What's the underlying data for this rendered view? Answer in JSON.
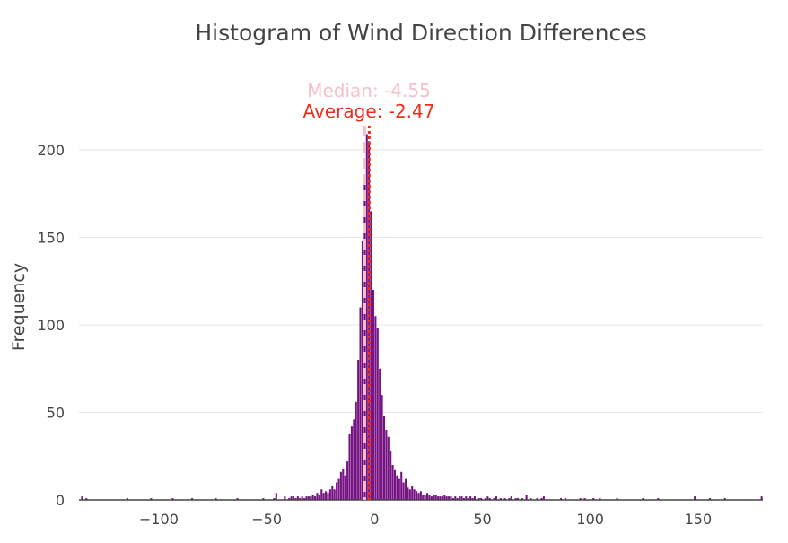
{
  "chart_data": {
    "type": "bar",
    "title": "Histogram of Wind Direction Differences",
    "xlabel": "",
    "ylabel": "Frequency",
    "xlim": [
      -137,
      180
    ],
    "ylim": [
      0,
      220
    ],
    "x_ticks": [
      -100,
      -50,
      0,
      50,
      100,
      150
    ],
    "y_ticks": [
      0,
      50,
      100,
      150,
      200
    ],
    "grid": true,
    "bar_color": "#771483",
    "bin_width": 1,
    "bins": [
      [
        -136,
        2
      ],
      [
        -134,
        1
      ],
      [
        -115,
        1
      ],
      [
        -104,
        1
      ],
      [
        -94,
        1
      ],
      [
        -85,
        1
      ],
      [
        -74,
        1
      ],
      [
        -64,
        1
      ],
      [
        -52,
        1
      ],
      [
        -47,
        1
      ],
      [
        -46,
        4
      ],
      [
        -42,
        2
      ],
      [
        -40,
        1
      ],
      [
        -39,
        2
      ],
      [
        -38,
        2
      ],
      [
        -37,
        1
      ],
      [
        -36,
        2
      ],
      [
        -35,
        1
      ],
      [
        -34,
        2
      ],
      [
        -33,
        1
      ],
      [
        -32,
        2
      ],
      [
        -31,
        2
      ],
      [
        -30,
        2
      ],
      [
        -29,
        3
      ],
      [
        -28,
        2
      ],
      [
        -27,
        4
      ],
      [
        -26,
        3
      ],
      [
        -25,
        6
      ],
      [
        -24,
        4
      ],
      [
        -23,
        5
      ],
      [
        -22,
        4
      ],
      [
        -21,
        6
      ],
      [
        -20,
        8
      ],
      [
        -19,
        6
      ],
      [
        -18,
        10
      ],
      [
        -17,
        12
      ],
      [
        -16,
        16
      ],
      [
        -15,
        18
      ],
      [
        -14,
        14
      ],
      [
        -13,
        22
      ],
      [
        -12,
        38
      ],
      [
        -11,
        42
      ],
      [
        -10,
        46
      ],
      [
        -9,
        56
      ],
      [
        -8,
        80
      ],
      [
        -7,
        110
      ],
      [
        -6,
        148
      ],
      [
        -5,
        185
      ],
      [
        -4,
        209
      ],
      [
        -3,
        205
      ],
      [
        -2,
        165
      ],
      [
        -1,
        120
      ],
      [
        0,
        105
      ],
      [
        1,
        98
      ],
      [
        2,
        75
      ],
      [
        3,
        60
      ],
      [
        4,
        48
      ],
      [
        5,
        40
      ],
      [
        6,
        36
      ],
      [
        7,
        28
      ],
      [
        8,
        20
      ],
      [
        9,
        17
      ],
      [
        10,
        14
      ],
      [
        11,
        12
      ],
      [
        12,
        16
      ],
      [
        13,
        10
      ],
      [
        14,
        12
      ],
      [
        15,
        7
      ],
      [
        16,
        6
      ],
      [
        17,
        8
      ],
      [
        18,
        6
      ],
      [
        19,
        5
      ],
      [
        20,
        4
      ],
      [
        21,
        5
      ],
      [
        22,
        3
      ],
      [
        23,
        3
      ],
      [
        24,
        4
      ],
      [
        25,
        3
      ],
      [
        26,
        2
      ],
      [
        27,
        3
      ],
      [
        28,
        3
      ],
      [
        29,
        2
      ],
      [
        30,
        2
      ],
      [
        31,
        2
      ],
      [
        32,
        3
      ],
      [
        33,
        2
      ],
      [
        34,
        2
      ],
      [
        35,
        2
      ],
      [
        36,
        1
      ],
      [
        37,
        2
      ],
      [
        38,
        1
      ],
      [
        39,
        2
      ],
      [
        40,
        2
      ],
      [
        41,
        1
      ],
      [
        42,
        2
      ],
      [
        43,
        1
      ],
      [
        44,
        2
      ],
      [
        45,
        1
      ],
      [
        46,
        2
      ],
      [
        48,
        1
      ],
      [
        49,
        1
      ],
      [
        51,
        1
      ],
      [
        52,
        2
      ],
      [
        53,
        1
      ],
      [
        55,
        1
      ],
      [
        56,
        2
      ],
      [
        58,
        1
      ],
      [
        60,
        1
      ],
      [
        62,
        1
      ],
      [
        63,
        2
      ],
      [
        65,
        1
      ],
      [
        66,
        1
      ],
      [
        68,
        1
      ],
      [
        70,
        3
      ],
      [
        72,
        1
      ],
      [
        75,
        1
      ],
      [
        77,
        1
      ],
      [
        78,
        2
      ],
      [
        86,
        1
      ],
      [
        88,
        1
      ],
      [
        95,
        1
      ],
      [
        97,
        1
      ],
      [
        101,
        1
      ],
      [
        104,
        1
      ],
      [
        112,
        1
      ],
      [
        124,
        1
      ],
      [
        131,
        1
      ],
      [
        148,
        2
      ],
      [
        155,
        1
      ],
      [
        162,
        1
      ],
      [
        179,
        2
      ]
    ],
    "reference_lines": [
      {
        "label": "Median: -4.55",
        "value": -4.55,
        "color": "#f4c1cb",
        "dash": "dashed"
      },
      {
        "label": "Average: -2.47",
        "value": -2.47,
        "color": "#e8301d",
        "dash": "dotted"
      }
    ]
  }
}
